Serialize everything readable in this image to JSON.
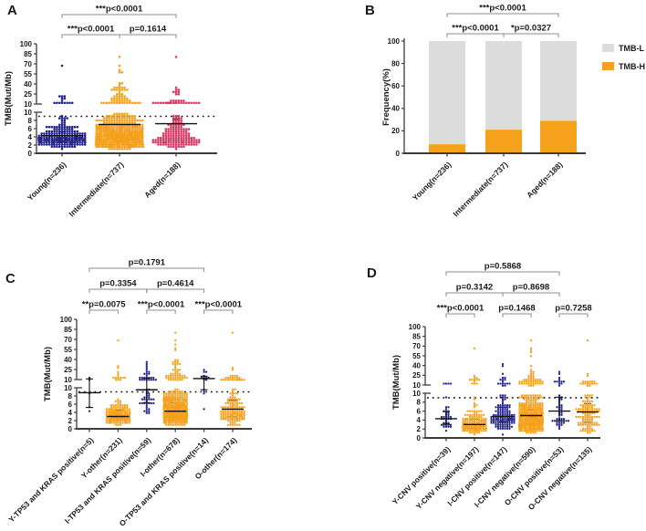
{
  "figure": {
    "background": "#ffffff",
    "panel_letters": [
      "A",
      "B",
      "C",
      "D"
    ]
  },
  "colors": {
    "blue": "#23238c",
    "orange": "#f5a11c",
    "crimson": "#d63a64",
    "gray_bar": "#dcdcdc",
    "axis": "#3c3c3c",
    "bracket": "#8c8c8c",
    "text": "#1a1a1a",
    "threshold": "#141414"
  },
  "chart_data": [
    {
      "panel": "A",
      "type": "scatter",
      "ylabel": "TMB(Mut/Mb)",
      "y_axis_break": {
        "lower_range": [
          0,
          10
        ],
        "upper_range": [
          10,
          100
        ]
      },
      "yticks_lower": [
        0,
        2,
        4,
        6,
        8,
        10
      ],
      "yticks_upper": [
        10,
        25,
        40,
        55,
        70,
        85,
        100
      ],
      "threshold_line_y": 9,
      "groups": [
        {
          "label": "Young(n=236)",
          "n": 236,
          "color": "#23238c",
          "median_line": 4.3,
          "center": 3.8,
          "spread": 0.42,
          "tail": {
            "count": 14,
            "min": 10.5,
            "max": 25
          },
          "outliers": [
            68
          ]
        },
        {
          "label": "Intermediate(n=737)",
          "n": 737,
          "color": "#f5a11c",
          "median_line": 7.0,
          "center": 4.3,
          "spread": 0.5,
          "tail": {
            "count": 55,
            "min": 10.5,
            "max": 42
          },
          "outliers": [
            56,
            58,
            61,
            68,
            80
          ]
        },
        {
          "label": "Aged(n=188)",
          "n": 188,
          "color": "#d63a64",
          "median_line": 7.2,
          "center": 4.3,
          "spread": 0.55,
          "tail": {
            "count": 30,
            "min": 10.5,
            "max": 16
          },
          "outliers": [
            25,
            26,
            27,
            28,
            29,
            30,
            31,
            33,
            80
          ]
        }
      ],
      "comparisons": [
        {
          "from": 0,
          "to": 2,
          "row": 2,
          "label": "***p<0.0001"
        },
        {
          "from": 0,
          "to": 1,
          "row": 1,
          "label": "***p<0.0001"
        },
        {
          "from": 1,
          "to": 2,
          "row": 1,
          "label": "p=0.1614"
        }
      ]
    },
    {
      "panel": "B",
      "type": "bar",
      "ylabel": "Frequency(%)",
      "ylim": [
        0,
        100
      ],
      "yticks": [
        0,
        20,
        40,
        60,
        80,
        100
      ],
      "categories": [
        "Young(n=236)",
        "Intermediate(n=737)",
        "Aged(n=188)"
      ],
      "series": [
        {
          "name": "TMB-L",
          "color": "#dcdcdc",
          "values": [
            92,
            79,
            71
          ]
        },
        {
          "name": "TMB-H",
          "color": "#f5a11c",
          "values": [
            8,
            21,
            29
          ]
        }
      ],
      "legend": [
        {
          "label": "TMB-L",
          "color": "#dcdcdc"
        },
        {
          "label": "TMB-H",
          "color": "#f5a11c"
        }
      ],
      "comparisons": [
        {
          "from": 0,
          "to": 2,
          "row": 2,
          "label": "***p<0.0001"
        },
        {
          "from": 0,
          "to": 1,
          "row": 1,
          "label": "***p<0.0001"
        },
        {
          "from": 1,
          "to": 2,
          "row": 1,
          "label": "*p=0.0327"
        }
      ]
    },
    {
      "panel": "C",
      "type": "scatter",
      "ylabel": "TMB(Mut/Mb)",
      "y_axis_break": {
        "lower_range": [
          0,
          10
        ],
        "upper_range": [
          10,
          100
        ]
      },
      "yticks_lower": [
        0,
        2,
        4,
        6,
        8,
        10
      ],
      "yticks_upper": [
        10,
        25,
        40,
        55,
        70,
        85,
        100
      ],
      "threshold_line_y": 9,
      "groups": [
        {
          "label": "Y-TP53 and KRAS positive(n=5)",
          "n": 5,
          "color": "#23238c",
          "median_line": 8.8,
          "values": [
            4.2,
            5.2,
            8.8,
            11,
            12
          ]
        },
        {
          "label": "Y-other(n=231)",
          "n": 231,
          "color": "#f5a11c",
          "median_line": 3.0,
          "center": 3.0,
          "spread": 0.45,
          "tail": {
            "count": 12,
            "min": 10.5,
            "max": 25
          },
          "outliers": [
            26,
            30,
            68
          ]
        },
        {
          "label": "I-TP53 and KRAS positive(n=59)",
          "n": 59,
          "color": "#23238c",
          "median_line": 9.5,
          "center": 6.3,
          "spread": 0.32,
          "tail": {
            "count": 22,
            "min": 10.5,
            "max": 25
          },
          "outliers": [
            28,
            30,
            33,
            37
          ]
        },
        {
          "label": "I-other(n=678)",
          "n": 678,
          "color": "#f5a11c",
          "median_line": 4.3,
          "center": 4.2,
          "spread": 0.5,
          "tail": {
            "count": 48,
            "min": 10.5,
            "max": 40
          },
          "outliers": [
            55,
            58,
            62,
            68,
            80
          ]
        },
        {
          "label": "O-TP53 and KRAS positive(n=14)",
          "n": 14,
          "color": "#23238c",
          "median_line": 11.5,
          "values": [
            5,
            8.5,
            9,
            9.5,
            11,
            11,
            11.5,
            12,
            12,
            13,
            15,
            20,
            22,
            25
          ]
        },
        {
          "label": "O-other(n=174)",
          "n": 174,
          "color": "#f5a11c",
          "median_line": 4.8,
          "center": 4.0,
          "spread": 0.55,
          "tail": {
            "count": 24,
            "min": 10.5,
            "max": 16
          },
          "outliers": [
            25,
            28,
            80
          ]
        }
      ],
      "comparisons": [
        {
          "from": 0,
          "to": 4,
          "row": 3,
          "label": "p=0.1791"
        },
        {
          "from": 0,
          "to": 2,
          "row": 2,
          "label": "p=0.3354"
        },
        {
          "from": 2,
          "to": 4,
          "row": 2,
          "label": "p=0.4614"
        },
        {
          "from": 0,
          "to": 1,
          "row": 1,
          "label": "**p=0.0075"
        },
        {
          "from": 2,
          "to": 3,
          "row": 1,
          "label": "***p<0.0001"
        },
        {
          "from": 4,
          "to": 5,
          "row": 1,
          "label": "***p<0.0001"
        }
      ]
    },
    {
      "panel": "D",
      "type": "scatter",
      "ylabel": "TMB(Mut/Mb)",
      "y_axis_break": {
        "lower_range": [
          0,
          10
        ],
        "upper_range": [
          10,
          100
        ]
      },
      "yticks_lower": [
        0,
        2,
        4,
        6,
        8,
        10
      ],
      "yticks_upper": [
        10,
        25,
        40,
        55,
        70,
        85,
        100
      ],
      "threshold_line_y": 9,
      "groups": [
        {
          "label": "Y-CNV positive(n=39)",
          "n": 39,
          "color": "#23238c",
          "median_line": 4.3,
          "center": 4.0,
          "spread": 0.35,
          "outliers": [
            11,
            11.5,
            12,
            12.5
          ]
        },
        {
          "label": "Y-CNV negative(n=197)",
          "n": 197,
          "color": "#f5a11c",
          "median_line": 3.0,
          "center": 3.0,
          "spread": 0.45,
          "tail": {
            "count": 12,
            "min": 10.5,
            "max": 25
          },
          "outliers": [
            68
          ]
        },
        {
          "label": "I-CNV positive(n=147)",
          "n": 147,
          "color": "#23238c",
          "median_line": 4.8,
          "center": 4.5,
          "spread": 0.45,
          "tail": {
            "count": 14,
            "min": 10.5,
            "max": 25
          },
          "outliers": [
            27,
            40,
            42
          ]
        },
        {
          "label": "I-CNV negative(n=590)",
          "n": 590,
          "color": "#f5a11c",
          "median_line": 5.0,
          "center": 4.5,
          "spread": 0.5,
          "tail": {
            "count": 45,
            "min": 10.5,
            "max": 40
          },
          "outliers": [
            55,
            60,
            65,
            68,
            80
          ]
        },
        {
          "label": "O-CNV positive(n=53)",
          "n": 53,
          "color": "#23238c",
          "median_line": 6.0,
          "center": 5.3,
          "spread": 0.45,
          "tail": {
            "count": 10,
            "min": 10.5,
            "max": 25
          },
          "outliers": [
            27,
            30
          ]
        },
        {
          "label": "O-CNV negative(n=135)",
          "n": 135,
          "color": "#f5a11c",
          "median_line": 5.8,
          "center": 5.0,
          "spread": 0.5,
          "tail": {
            "count": 16,
            "min": 10.5,
            "max": 16
          },
          "outliers": [
            25,
            27,
            80
          ]
        }
      ],
      "comparisons": [
        {
          "from": 0,
          "to": 4,
          "row": 3,
          "label": "p=0.5868"
        },
        {
          "from": 0,
          "to": 2,
          "row": 2,
          "label": "p=0.3142"
        },
        {
          "from": 2,
          "to": 4,
          "row": 2,
          "label": "p=0.8698"
        },
        {
          "from": 0,
          "to": 1,
          "row": 1,
          "label": "***p<0.0001"
        },
        {
          "from": 2,
          "to": 3,
          "row": 1,
          "label": "p=0.1468"
        },
        {
          "from": 4,
          "to": 5,
          "row": 1,
          "label": "p=0.7258"
        }
      ]
    }
  ]
}
